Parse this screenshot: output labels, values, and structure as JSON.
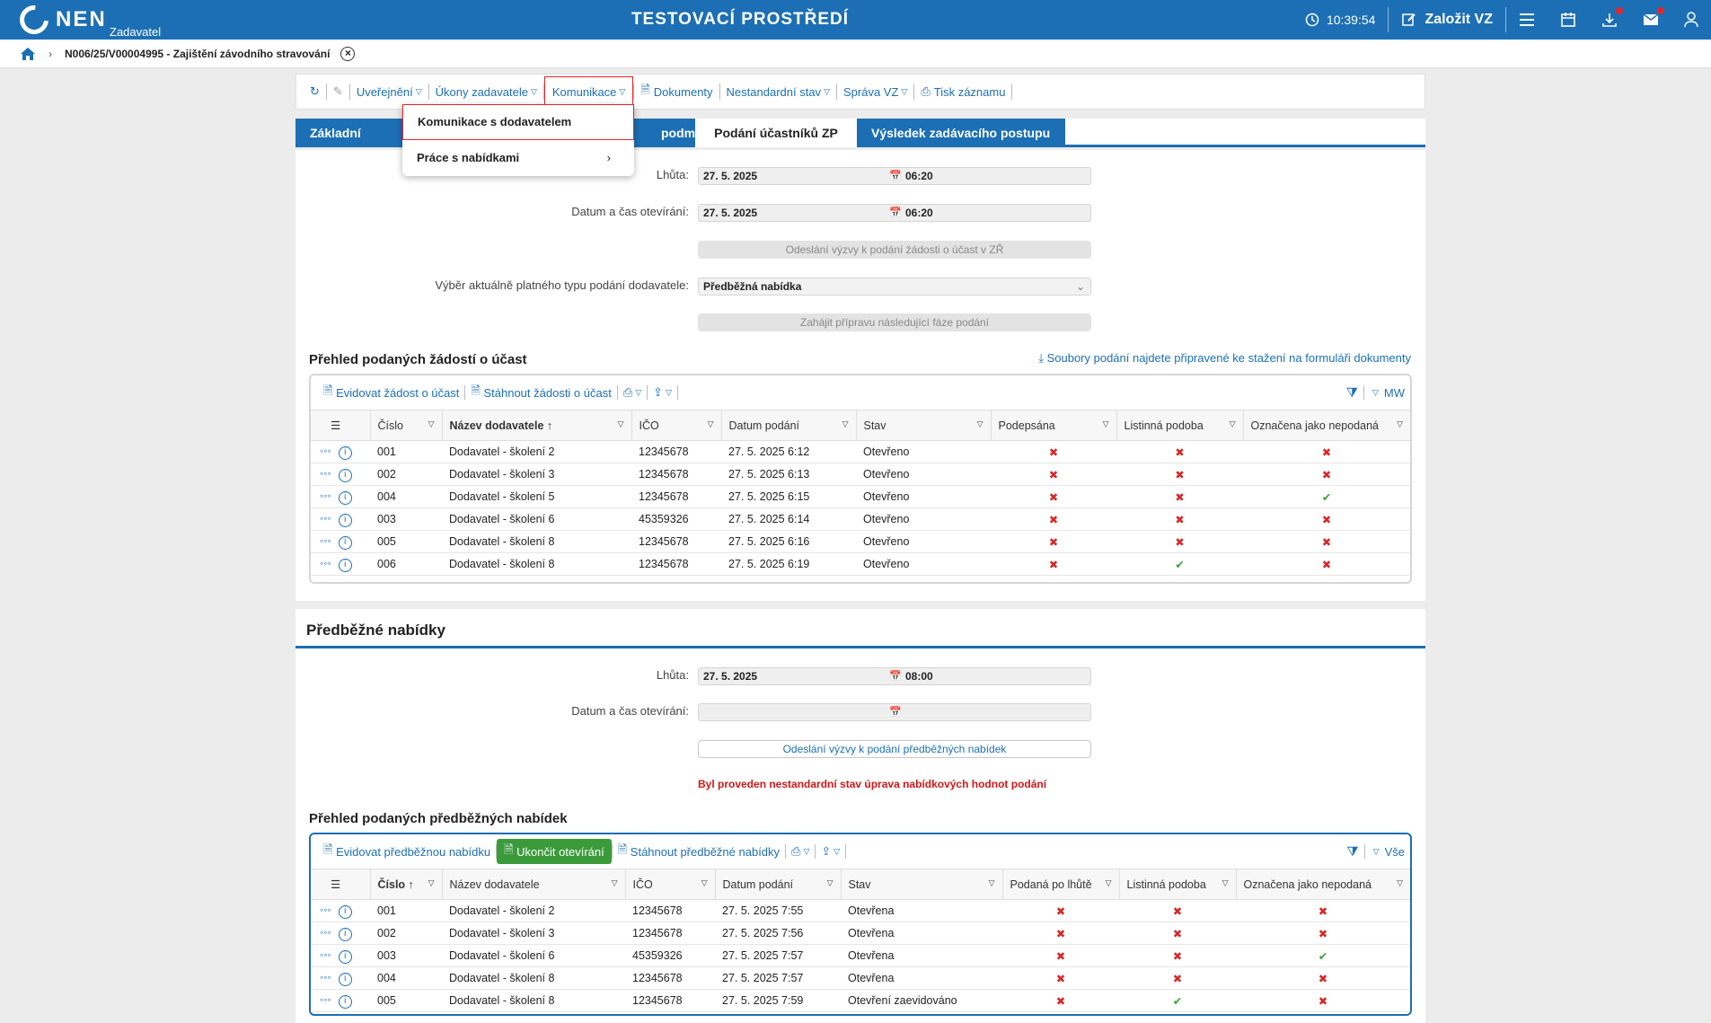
{
  "topbar": {
    "logo": "NEN",
    "logo_sub": "Zadavatel",
    "env_title": "TESTOVACÍ PROSTŘEDÍ",
    "time": "10:39:54",
    "create_label": "Založit VZ",
    "icons": [
      "clock-icon",
      "edit-icon",
      "menu-icon",
      "calendar-icon",
      "download-icon",
      "mail-icon",
      "user-icon"
    ]
  },
  "breadcrumb": {
    "item": "N006/25/V00004995 - Zajištění závodního stravování"
  },
  "toolbar": {
    "items": [
      "Uveřejnění",
      "Úkony zadavatele",
      "Komunikace",
      "Dokumenty",
      "Nestandardní stav",
      "Správa VZ",
      "Tisk záznamu"
    ]
  },
  "tabs": [
    "Základní údaje",
    "podmínky",
    "Podání účastníků ZP",
    "Výsledek zadávacího postupu"
  ],
  "dropdown": {
    "items": [
      "Komunikace s dodavatelem",
      "Práce s nabídkami"
    ]
  },
  "section1": {
    "lhuta_label": "Lhůta:",
    "lhuta_date": "27. 5. 2025",
    "lhuta_time": "06:20",
    "open_label": "Datum a čas otevírání:",
    "open_date": "27. 5. 2025",
    "open_time": "06:20",
    "btn_invite": "Odeslání výzvy k podání žádosti o účast v ZŘ",
    "type_label": "Výběr aktuálně platného typu podání dodavatele:",
    "type_value": "Předběžná nabídka",
    "btn_next": "Zahájit přípravu následující fáze podání",
    "title": "Přehled podaných žádostí o účast",
    "files_link": "Soubory podání najdete připravené ke stažení na formuláři dokumenty",
    "grid_actions": [
      "Evidovat žádost o účast",
      "Stáhnout žádosti o účast"
    ],
    "grid_right": "MW",
    "columns": [
      "Číslo",
      "Název dodavatele",
      "IČO",
      "Datum podání",
      "Stav",
      "Podepsána",
      "Listinná podoba",
      "Označena jako nepodaná"
    ],
    "rows": [
      {
        "cislo": "001",
        "nazev": "Dodavatel - školení 2",
        "ico": "12345678",
        "datum": "27. 5. 2025 6:12",
        "stav": "Otevřeno",
        "a": "x",
        "b": "x",
        "c": "x"
      },
      {
        "cislo": "002",
        "nazev": "Dodavatel - školení 3",
        "ico": "12345678",
        "datum": "27. 5. 2025 6:13",
        "stav": "Otevřeno",
        "a": "x",
        "b": "x",
        "c": "x"
      },
      {
        "cislo": "004",
        "nazev": "Dodavatel - školení 5",
        "ico": "12345678",
        "datum": "27. 5. 2025 6:15",
        "stav": "Otevřeno",
        "a": "x",
        "b": "x",
        "c": "ok"
      },
      {
        "cislo": "003",
        "nazev": "Dodavatel - školení 6",
        "ico": "45359326",
        "datum": "27. 5. 2025 6:14",
        "stav": "Otevřeno",
        "a": "x",
        "b": "x",
        "c": "x"
      },
      {
        "cislo": "005",
        "nazev": "Dodavatel - školení 8",
        "ico": "12345678",
        "datum": "27. 5. 2025 6:16",
        "stav": "Otevřeno",
        "a": "x",
        "b": "x",
        "c": "x"
      },
      {
        "cislo": "006",
        "nazev": "Dodavatel - školení 8",
        "ico": "12345678",
        "datum": "27. 5. 2025 6:19",
        "stav": "Otevřeno",
        "a": "x",
        "b": "ok",
        "c": "x"
      }
    ]
  },
  "section2": {
    "heading": "Předběžné nabídky",
    "lhuta_label": "Lhůta:",
    "lhuta_date": "27. 5. 2025",
    "lhuta_time": "08:00",
    "open_label": "Datum a čas otevírání:",
    "btn_invite": "Odeslání výzvy k podání předběžných nabídek",
    "warning": "Byl proveden nestandardní stav úprava nabídkových hodnot podání",
    "title": "Přehled podaných předběžných nabídek",
    "grid_actions": [
      "Evidovat předběžnou nabídku",
      "Ukončit otevírání",
      "Stáhnout předběžné nabídky"
    ],
    "grid_right": "Vše",
    "columns": [
      "Číslo",
      "Název dodavatele",
      "IČO",
      "Datum podání",
      "Stav",
      "Podaná po lhůtě",
      "Listinná podoba",
      "Označena jako nepodaná"
    ],
    "rows": [
      {
        "cislo": "001",
        "nazev": "Dodavatel - školení 2",
        "ico": "12345678",
        "datum": "27. 5. 2025 7:55",
        "stav": "Otevřena",
        "a": "x",
        "b": "x",
        "c": "x"
      },
      {
        "cislo": "002",
        "nazev": "Dodavatel - školení 3",
        "ico": "12345678",
        "datum": "27. 5. 2025 7:56",
        "stav": "Otevřena",
        "a": "x",
        "b": "x",
        "c": "x"
      },
      {
        "cislo": "003",
        "nazev": "Dodavatel - školení 6",
        "ico": "45359326",
        "datum": "27. 5. 2025 7:57",
        "stav": "Otevřena",
        "a": "x",
        "b": "x",
        "c": "ok"
      },
      {
        "cislo": "004",
        "nazev": "Dodavatel - školení 8",
        "ico": "12345678",
        "datum": "27. 5. 2025 7:57",
        "stav": "Otevřena",
        "a": "x",
        "b": "x",
        "c": "x"
      },
      {
        "cislo": "005",
        "nazev": "Dodavatel - školení 8",
        "ico": "12345678",
        "datum": "27. 5. 2025 7:59",
        "stav": "Otevření zaevidováno",
        "a": "x",
        "b": "ok",
        "c": "x"
      }
    ]
  }
}
